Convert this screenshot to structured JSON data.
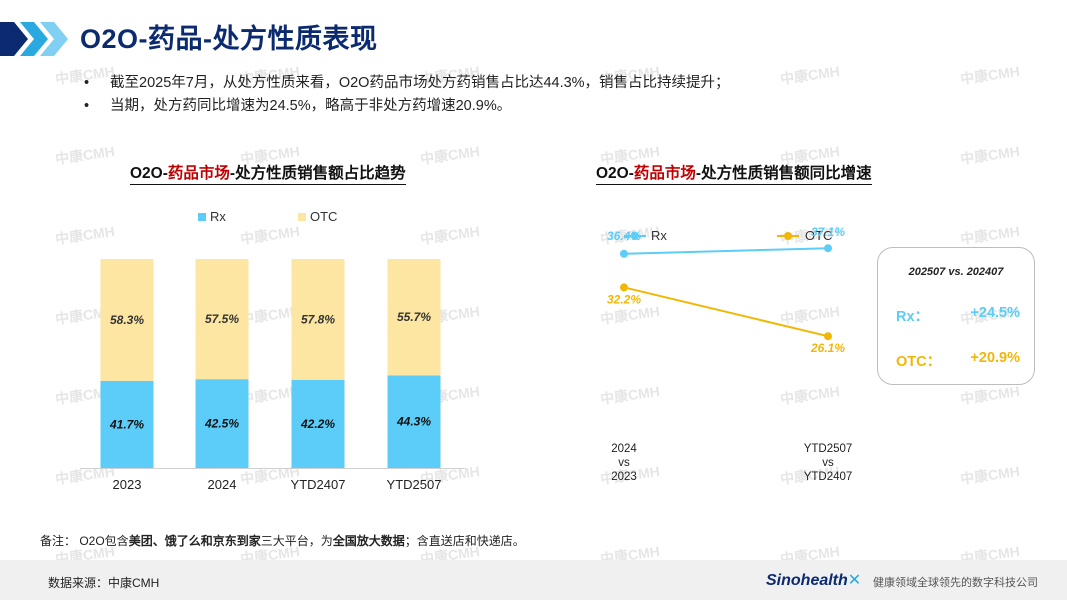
{
  "header": {
    "title": "O2O-药品-处方性质表现"
  },
  "bullets": [
    "截至2025年7月，从处方性质来看，O2O药品市场处方药销售占比达44.3%，销售占比持续提升；",
    "当期，处方药同比增速为24.5%，略高于非处方药增速20.9%。"
  ],
  "watermark": "中康CMH",
  "colors": {
    "rx": "#5bcdf8",
    "otc": "#fde5a2",
    "otc_line": "#f2b705",
    "title_blue": "#0b2a6f",
    "highlight_red": "#c00000"
  },
  "chart_left": {
    "title_prefix": "O2O-",
    "title_highlight": "药品市场",
    "title_suffix": "-处方性质销售额占比趋势"
  },
  "chart_right": {
    "title_prefix": "O2O-",
    "title_highlight": "药品市场",
    "title_suffix": "-处方性质销售额同比增速"
  },
  "kpi": {
    "title": "202507 vs. 202407",
    "rx_label": "Rx：",
    "rx_value": "+24.5%",
    "otc_label": "OTC：",
    "otc_value": "+20.9%"
  },
  "note": {
    "prefix": "备注：  O2O包含",
    "bold1": "美团、饿了么和京东到家",
    "middle": "三大平台，为",
    "bold2": "全国放大数据",
    "suffix": "；含直送店和快递店。"
  },
  "footer": {
    "source": "数据来源：中康CMH",
    "brand": "Sinohealth",
    "tagline": "健康领域全球领先的数字科技公司"
  },
  "chart_data": [
    {
      "type": "bar",
      "stacked": true,
      "title": "O2O-药品市场-处方性质销售额占比趋势",
      "categories": [
        "2023",
        "2024",
        "YTD2407",
        "YTD2507"
      ],
      "series": [
        {
          "name": "Rx",
          "values": [
            41.7,
            42.5,
            42.2,
            44.3
          ],
          "labels": [
            "41.7%",
            "42.5%",
            "42.2%",
            "44.3%"
          ]
        },
        {
          "name": "OTC",
          "values": [
            58.3,
            57.5,
            57.8,
            55.7
          ],
          "labels": [
            "58.3%",
            "57.5%",
            "57.8%",
            "55.7%"
          ]
        }
      ],
      "ylim": [
        0,
        100
      ],
      "legend": "top"
    },
    {
      "type": "line",
      "title": "O2O-药品市场-处方性质销售额同比增速",
      "categories": [
        [
          "2024",
          "vs",
          "2023"
        ],
        [
          "YTD2507",
          "vs",
          "YTD2407"
        ]
      ],
      "series": [
        {
          "name": "Rx",
          "values": [
            36.4,
            37.1
          ],
          "labels": [
            "36.4%",
            "37.1%"
          ]
        },
        {
          "name": "OTC",
          "values": [
            32.2,
            26.1
          ],
          "labels": [
            "32.2%",
            "26.1%"
          ]
        }
      ],
      "legend": "top"
    }
  ]
}
